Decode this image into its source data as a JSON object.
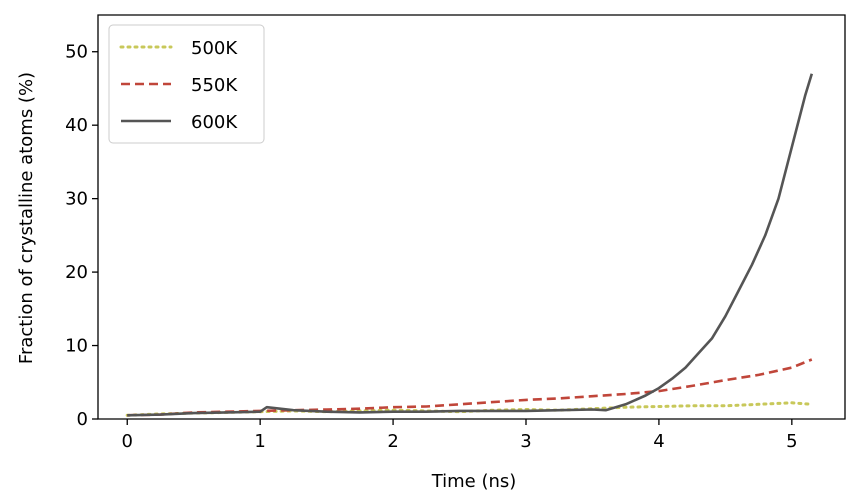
{
  "chart_data": {
    "type": "line",
    "xlabel": "Time (ns)",
    "ylabel": "Fraction of crystalline atoms (%)",
    "xlim": [
      -0.22,
      5.4
    ],
    "ylim": [
      0,
      55
    ],
    "xticks": [
      0,
      1,
      2,
      3,
      4,
      5
    ],
    "yticks": [
      0,
      10,
      20,
      30,
      40,
      50
    ],
    "xtick_labels": [
      "0",
      "1",
      "2",
      "3",
      "4",
      "5"
    ],
    "ytick_labels": [
      "0",
      "10",
      "20",
      "30",
      "40",
      "50"
    ],
    "grid": false,
    "legend_position": "top-left",
    "series": [
      {
        "name": "500K",
        "color": "#c8c85a",
        "style": "dotted",
        "x": [
          0,
          0.25,
          0.5,
          0.75,
          1.0,
          1.25,
          1.5,
          1.75,
          2.0,
          2.25,
          2.5,
          2.75,
          3.0,
          3.25,
          3.5,
          3.75,
          4.0,
          4.25,
          4.5,
          4.75,
          5.0,
          5.15
        ],
        "y": [
          0.5,
          0.7,
          0.8,
          0.9,
          1.0,
          1.1,
          1.0,
          1.1,
          1.2,
          1.1,
          1.0,
          1.2,
          1.3,
          1.2,
          1.4,
          1.6,
          1.7,
          1.8,
          1.8,
          2.0,
          2.2,
          2.0
        ]
      },
      {
        "name": "550K",
        "color": "#c0463a",
        "style": "dashed",
        "x": [
          0,
          0.25,
          0.5,
          0.75,
          1.0,
          1.25,
          1.5,
          1.75,
          2.0,
          2.25,
          2.5,
          2.75,
          3.0,
          3.25,
          3.5,
          3.75,
          4.0,
          4.25,
          4.5,
          4.75,
          5.0,
          5.15
        ],
        "y": [
          0.5,
          0.6,
          0.9,
          1.0,
          1.1,
          1.2,
          1.3,
          1.4,
          1.6,
          1.7,
          2.0,
          2.3,
          2.6,
          2.8,
          3.1,
          3.4,
          3.8,
          4.5,
          5.3,
          6.0,
          7.0,
          8.1
        ]
      },
      {
        "name": "600K",
        "color": "#555555",
        "style": "solid",
        "x": [
          0,
          0.25,
          0.5,
          0.75,
          1.0,
          1.05,
          1.25,
          1.5,
          1.75,
          2.0,
          2.25,
          2.5,
          2.75,
          3.0,
          3.25,
          3.5,
          3.6,
          3.75,
          3.9,
          4.0,
          4.1,
          4.2,
          4.3,
          4.4,
          4.5,
          4.6,
          4.7,
          4.8,
          4.9,
          5.0,
          5.1,
          5.15
        ],
        "y": [
          0.5,
          0.6,
          0.8,
          0.9,
          1.0,
          1.6,
          1.2,
          1.0,
          0.9,
          1.0,
          1.0,
          1.1,
          1.1,
          1.1,
          1.2,
          1.3,
          1.2,
          2.0,
          3.2,
          4.2,
          5.5,
          7.0,
          9.0,
          11.0,
          14.0,
          17.5,
          21.0,
          25.0,
          30.0,
          37.0,
          44.0,
          47.0
        ]
      }
    ]
  }
}
